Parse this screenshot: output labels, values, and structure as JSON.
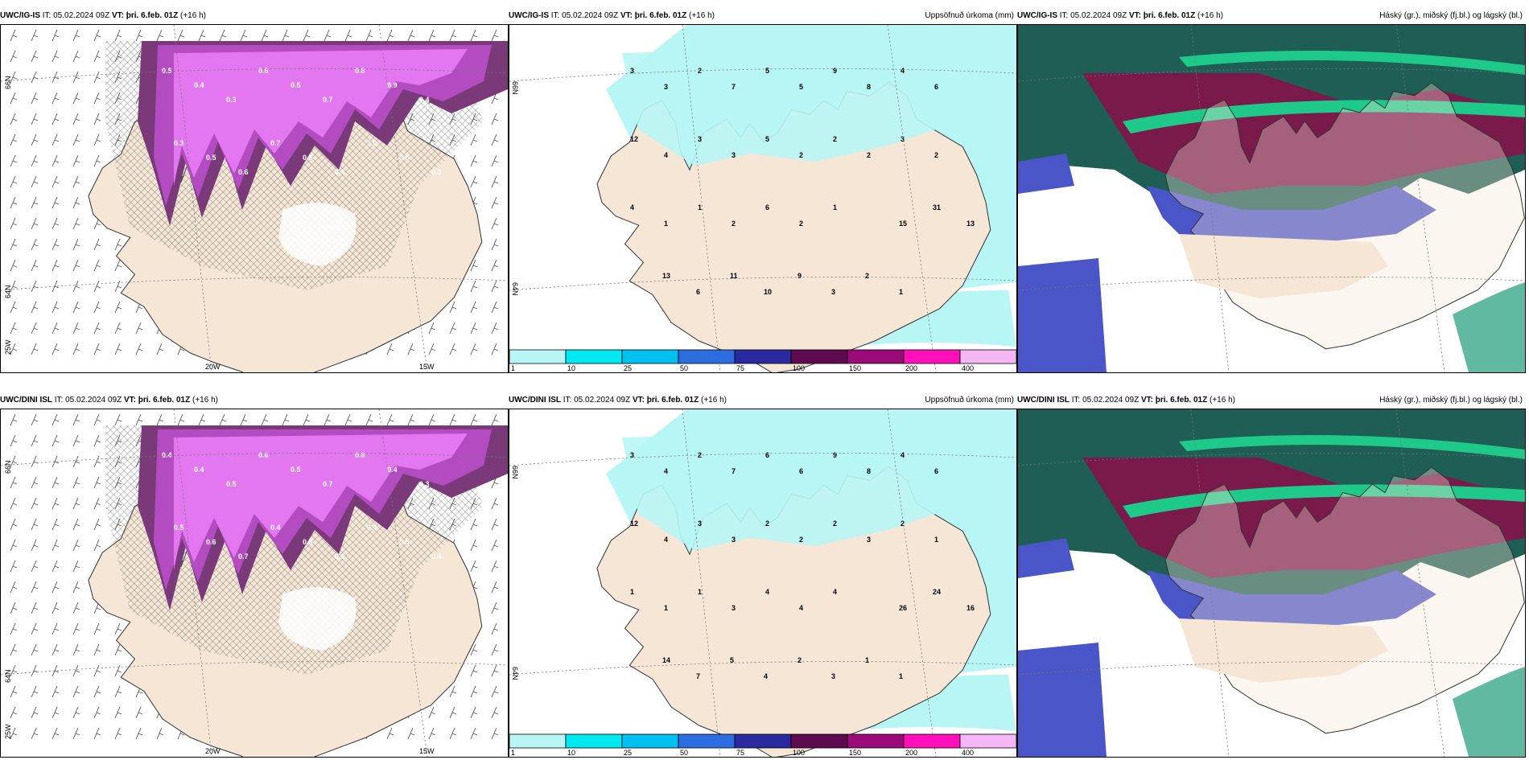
{
  "colors": {
    "land": "#f5e6d6",
    "precip_light": "#b8f5f5",
    "cloud_high": "#1f5e55",
    "cloud_mid": "#7a1a4a",
    "cloud_low": "#4a55c8",
    "cloud_green": "#1ec98a",
    "snow_dark": "#7a3a7a",
    "snow_mid": "#b24cc0",
    "snow_light": "#e277ef"
  },
  "rows": [
    {
      "panels": [
        {
          "model": "UWC/IG-IS",
          "it": "IT: 05.02.2024 09Z",
          "vt": "VT: þri. 6.feb. 01Z",
          "lead": "(+16 h)",
          "title": "",
          "lat_labels": [
            "66N",
            "64N",
            "25W"
          ],
          "lon_labels": [
            "20W",
            "15W"
          ],
          "snow_values": [
            "0.5",
            "0.4",
            "0.3",
            "0.6",
            "0.5",
            "0.7",
            "0.8",
            "0.9",
            "0.4",
            "0.3",
            "0.5",
            "0.6",
            "0.7",
            "0.5",
            "0.4",
            "1.0",
            "0.5",
            "0.3"
          ]
        },
        {
          "model": "UWC/IG-IS",
          "it": "IT: 05.02.2024 09Z",
          "vt": "VT: þri. 6.feb. 01Z",
          "lead": "(+16 h)",
          "title": "Uppsöfnuð úrkoma (mm)",
          "lat_labels": [
            "66N",
            "64N"
          ],
          "precip_values": [
            "3",
            "3",
            "2",
            "7",
            "5",
            "5",
            "9",
            "8",
            "4",
            "6",
            "12",
            "4",
            "3",
            "3",
            "5",
            "2",
            "2",
            "2",
            "3",
            "2",
            "4",
            "1",
            "1",
            "2",
            "6",
            "2",
            "1",
            "15",
            "31",
            "13",
            "13",
            "6",
            "11",
            "10",
            "9",
            "3",
            "2",
            "1"
          ],
          "legend": [
            "1",
            "10",
            "25",
            "50",
            "75",
            "100",
            "150",
            "200",
            "400"
          ]
        },
        {
          "model": "UWC/IG-IS",
          "it": "IT: 05.02.2024 09Z",
          "vt": "VT: þri. 6.feb. 01Z",
          "lead": "(+16 h)",
          "title": "Háský (gr.), miðský (fj.bl.) og lágský (bl.)"
        }
      ]
    },
    {
      "panels": [
        {
          "model": "UWC/DINI ISL",
          "it": "IT: 05.02.2024 09Z",
          "vt": "VT: þri. 6.feb. 01Z",
          "lead": "(+16 h)",
          "title": "",
          "lat_labels": [
            "66N",
            "64N",
            "25W"
          ],
          "lon_labels": [
            "20W",
            "15W"
          ],
          "snow_values": [
            "0.4",
            "0.4",
            "0.5",
            "0.6",
            "0.5",
            "0.7",
            "0.8",
            "0.4",
            "0.3",
            "0.5",
            "0.6",
            "0.7",
            "0.4",
            "0.5",
            "0.3",
            "0.4",
            "0.5",
            "0.4"
          ]
        },
        {
          "model": "UWC/DINI ISL",
          "it": "IT: 05.02.2024 09Z",
          "vt": "VT: þri. 6.feb. 01Z",
          "lead": "(+16 h)",
          "title": "Uppsöfnuð úrkoma (mm)",
          "lat_labels": [
            "66N",
            "64N"
          ],
          "precip_values": [
            "3",
            "4",
            "2",
            "7",
            "6",
            "6",
            "9",
            "8",
            "4",
            "6",
            "12",
            "4",
            "3",
            "3",
            "2",
            "2",
            "2",
            "3",
            "2",
            "1",
            "1",
            "1",
            "1",
            "3",
            "4",
            "4",
            "4",
            "26",
            "24",
            "16",
            "14",
            "7",
            "5",
            "4",
            "2",
            "3",
            "1",
            "1"
          ],
          "legend": [
            "1",
            "10",
            "25",
            "50",
            "75",
            "100",
            "150",
            "200",
            "400"
          ]
        },
        {
          "model": "UWC/DINI ISL",
          "it": "IT: 05.02.2024 09Z",
          "vt": "VT: þri. 6.feb. 01Z",
          "lead": "(+16 h)",
          "title": "Háský (gr.), miðský (fj.bl.) og lágský (bl.)"
        }
      ]
    }
  ]
}
